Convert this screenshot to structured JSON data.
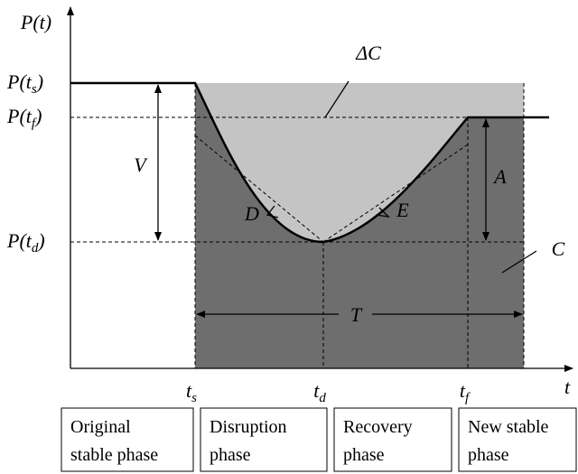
{
  "axes": {
    "y_label": "P(t)",
    "x_label": "t"
  },
  "y_labels": [
    {
      "text": "P(t",
      "sub": "s",
      "end": ")"
    },
    {
      "text": "P(t",
      "sub": "f",
      "end": ")"
    },
    {
      "text": "P(t",
      "sub": "d",
      "end": ")"
    }
  ],
  "x_labels": [
    {
      "text": "t",
      "sub": "s"
    },
    {
      "text": "t",
      "sub": "d"
    },
    {
      "text": "t",
      "sub": "f"
    }
  ],
  "annotations": {
    "delta_c": "ΔC",
    "v": "V",
    "a": "A",
    "c": "C",
    "d": "D",
    "e": "E",
    "t": "T"
  },
  "phases": [
    [
      "Original",
      "stable phase"
    ],
    [
      "Disruption",
      "phase"
    ],
    [
      "Recovery",
      "phase"
    ],
    [
      "New stable",
      "phase"
    ]
  ]
}
